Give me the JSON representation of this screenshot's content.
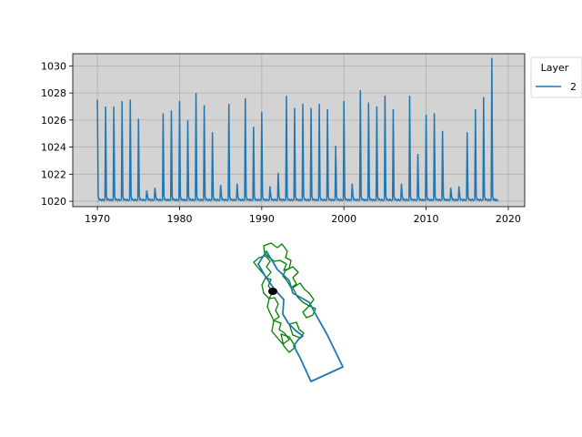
{
  "chart_data": [
    {
      "type": "line",
      "title": "",
      "xlabel": "",
      "ylabel": "",
      "xlim": [
        1967,
        2022
      ],
      "ylim": [
        1019.6,
        1030.9
      ],
      "xticks": [
        1970,
        1980,
        1990,
        2000,
        2010,
        2020
      ],
      "yticks": [
        1020,
        1022,
        1024,
        1026,
        1028,
        1030
      ],
      "grid": true,
      "background": "#d3d3d3",
      "legend": {
        "title": "Layer",
        "placement": "outside-right-top",
        "entries": [
          "2"
        ]
      },
      "series": [
        {
          "name": "2",
          "color": "#1f77b4",
          "baseline": 1020.1,
          "peaks": [
            [
              1970.0,
              1027.5
            ],
            [
              1971.0,
              1027.0
            ],
            [
              1972.0,
              1027.0
            ],
            [
              1973.0,
              1027.4
            ],
            [
              1974.0,
              1027.5
            ],
            [
              1975.0,
              1026.1
            ],
            [
              1976.0,
              1020.8
            ],
            [
              1977.0,
              1021.0
            ],
            [
              1978.0,
              1026.5
            ],
            [
              1979.0,
              1026.7
            ],
            [
              1980.0,
              1027.4
            ],
            [
              1981.0,
              1026.0
            ],
            [
              1982.0,
              1028.0
            ],
            [
              1983.0,
              1027.1
            ],
            [
              1984.0,
              1025.1
            ],
            [
              1985.0,
              1021.2
            ],
            [
              1986.0,
              1027.2
            ],
            [
              1987.0,
              1021.3
            ],
            [
              1988.0,
              1027.6
            ],
            [
              1989.0,
              1025.5
            ],
            [
              1990.0,
              1026.6
            ],
            [
              1991.0,
              1021.1
            ],
            [
              1992.0,
              1022.1
            ],
            [
              1993.0,
              1027.8
            ],
            [
              1994.0,
              1026.9
            ],
            [
              1995.0,
              1027.2
            ],
            [
              1996.0,
              1026.9
            ],
            [
              1997.0,
              1027.2
            ],
            [
              1998.0,
              1026.8
            ],
            [
              1999.0,
              1024.1
            ],
            [
              2000.0,
              1027.4
            ],
            [
              2001.0,
              1021.3
            ],
            [
              2002.0,
              1028.2
            ],
            [
              2003.0,
              1027.3
            ],
            [
              2004.0,
              1027.0
            ],
            [
              2005.0,
              1027.8
            ],
            [
              2006.0,
              1026.8
            ],
            [
              2007.0,
              1021.3
            ],
            [
              2008.0,
              1027.8
            ],
            [
              2009.0,
              1023.5
            ],
            [
              2010.0,
              1026.4
            ],
            [
              2011.0,
              1026.5
            ],
            [
              2012.0,
              1025.2
            ],
            [
              2013.0,
              1021.0
            ],
            [
              2014.0,
              1021.1
            ],
            [
              2015.0,
              1025.1
            ],
            [
              2016.0,
              1026.8
            ],
            [
              2017.0,
              1027.7
            ],
            [
              2018.0,
              1030.6
            ]
          ],
          "end": 2018.8
        }
      ]
    }
  ],
  "map_data": {
    "type": "map",
    "colors": {
      "study_area": "#1f77b4",
      "catchments": "#008000",
      "marker": "#000000"
    }
  }
}
